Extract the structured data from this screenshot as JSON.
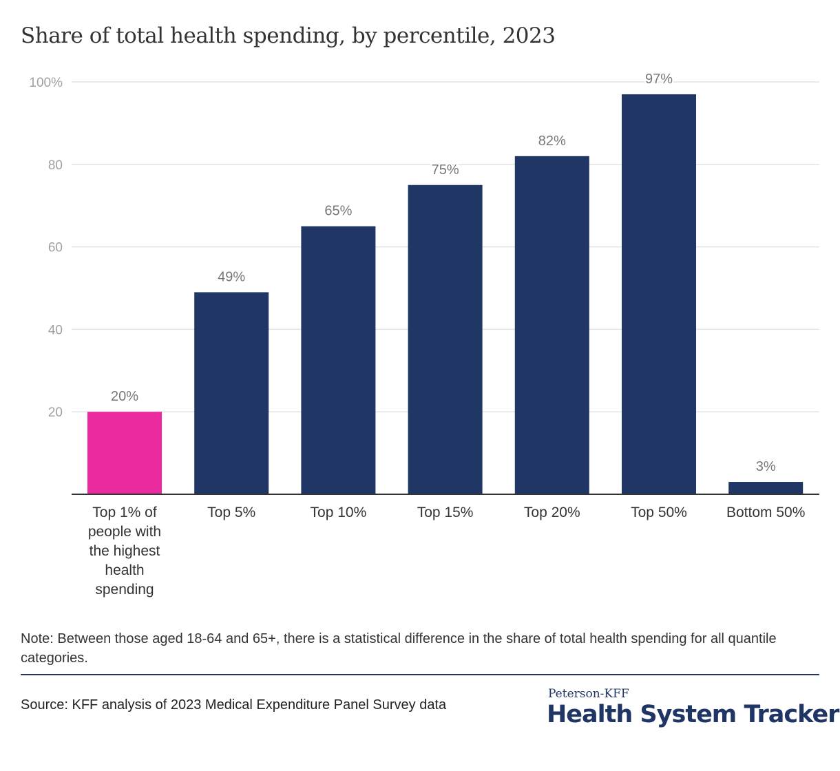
{
  "chart_data": {
    "type": "bar",
    "title": "Share of total health spending, by percentile, 2023",
    "xlabel": "",
    "ylabel": "",
    "ylim": [
      0,
      100
    ],
    "yticks": [
      20,
      40,
      60,
      80,
      100
    ],
    "ytick_labels": [
      "20",
      "40",
      "60",
      "80",
      "100%"
    ],
    "grid": true,
    "categories": [
      [
        "Top 1% of",
        "people with",
        "the highest",
        "health",
        "spending"
      ],
      [
        "Top 5%"
      ],
      [
        "Top 10%"
      ],
      [
        "Top 15%"
      ],
      [
        "Top 20%"
      ],
      [
        "Top 50%"
      ],
      [
        "Bottom 50%"
      ]
    ],
    "values": [
      20,
      49,
      65,
      75,
      82,
      97,
      3
    ],
    "data_labels": [
      "20%",
      "49%",
      "65%",
      "75%",
      "82%",
      "97%",
      "3%"
    ],
    "colors": [
      "#ec2a9f",
      "#203665",
      "#203665",
      "#203665",
      "#203665",
      "#203665",
      "#203665"
    ]
  },
  "note": "Note: Between those aged 18-64 and 65+, there is a statistical difference in the share of total health spending for all quantile categories.",
  "source": "Source: KFF analysis of 2023 Medical Expenditure Panel Survey data",
  "brand": {
    "small": "Peterson-KFF",
    "big": "Health System Tracker"
  }
}
